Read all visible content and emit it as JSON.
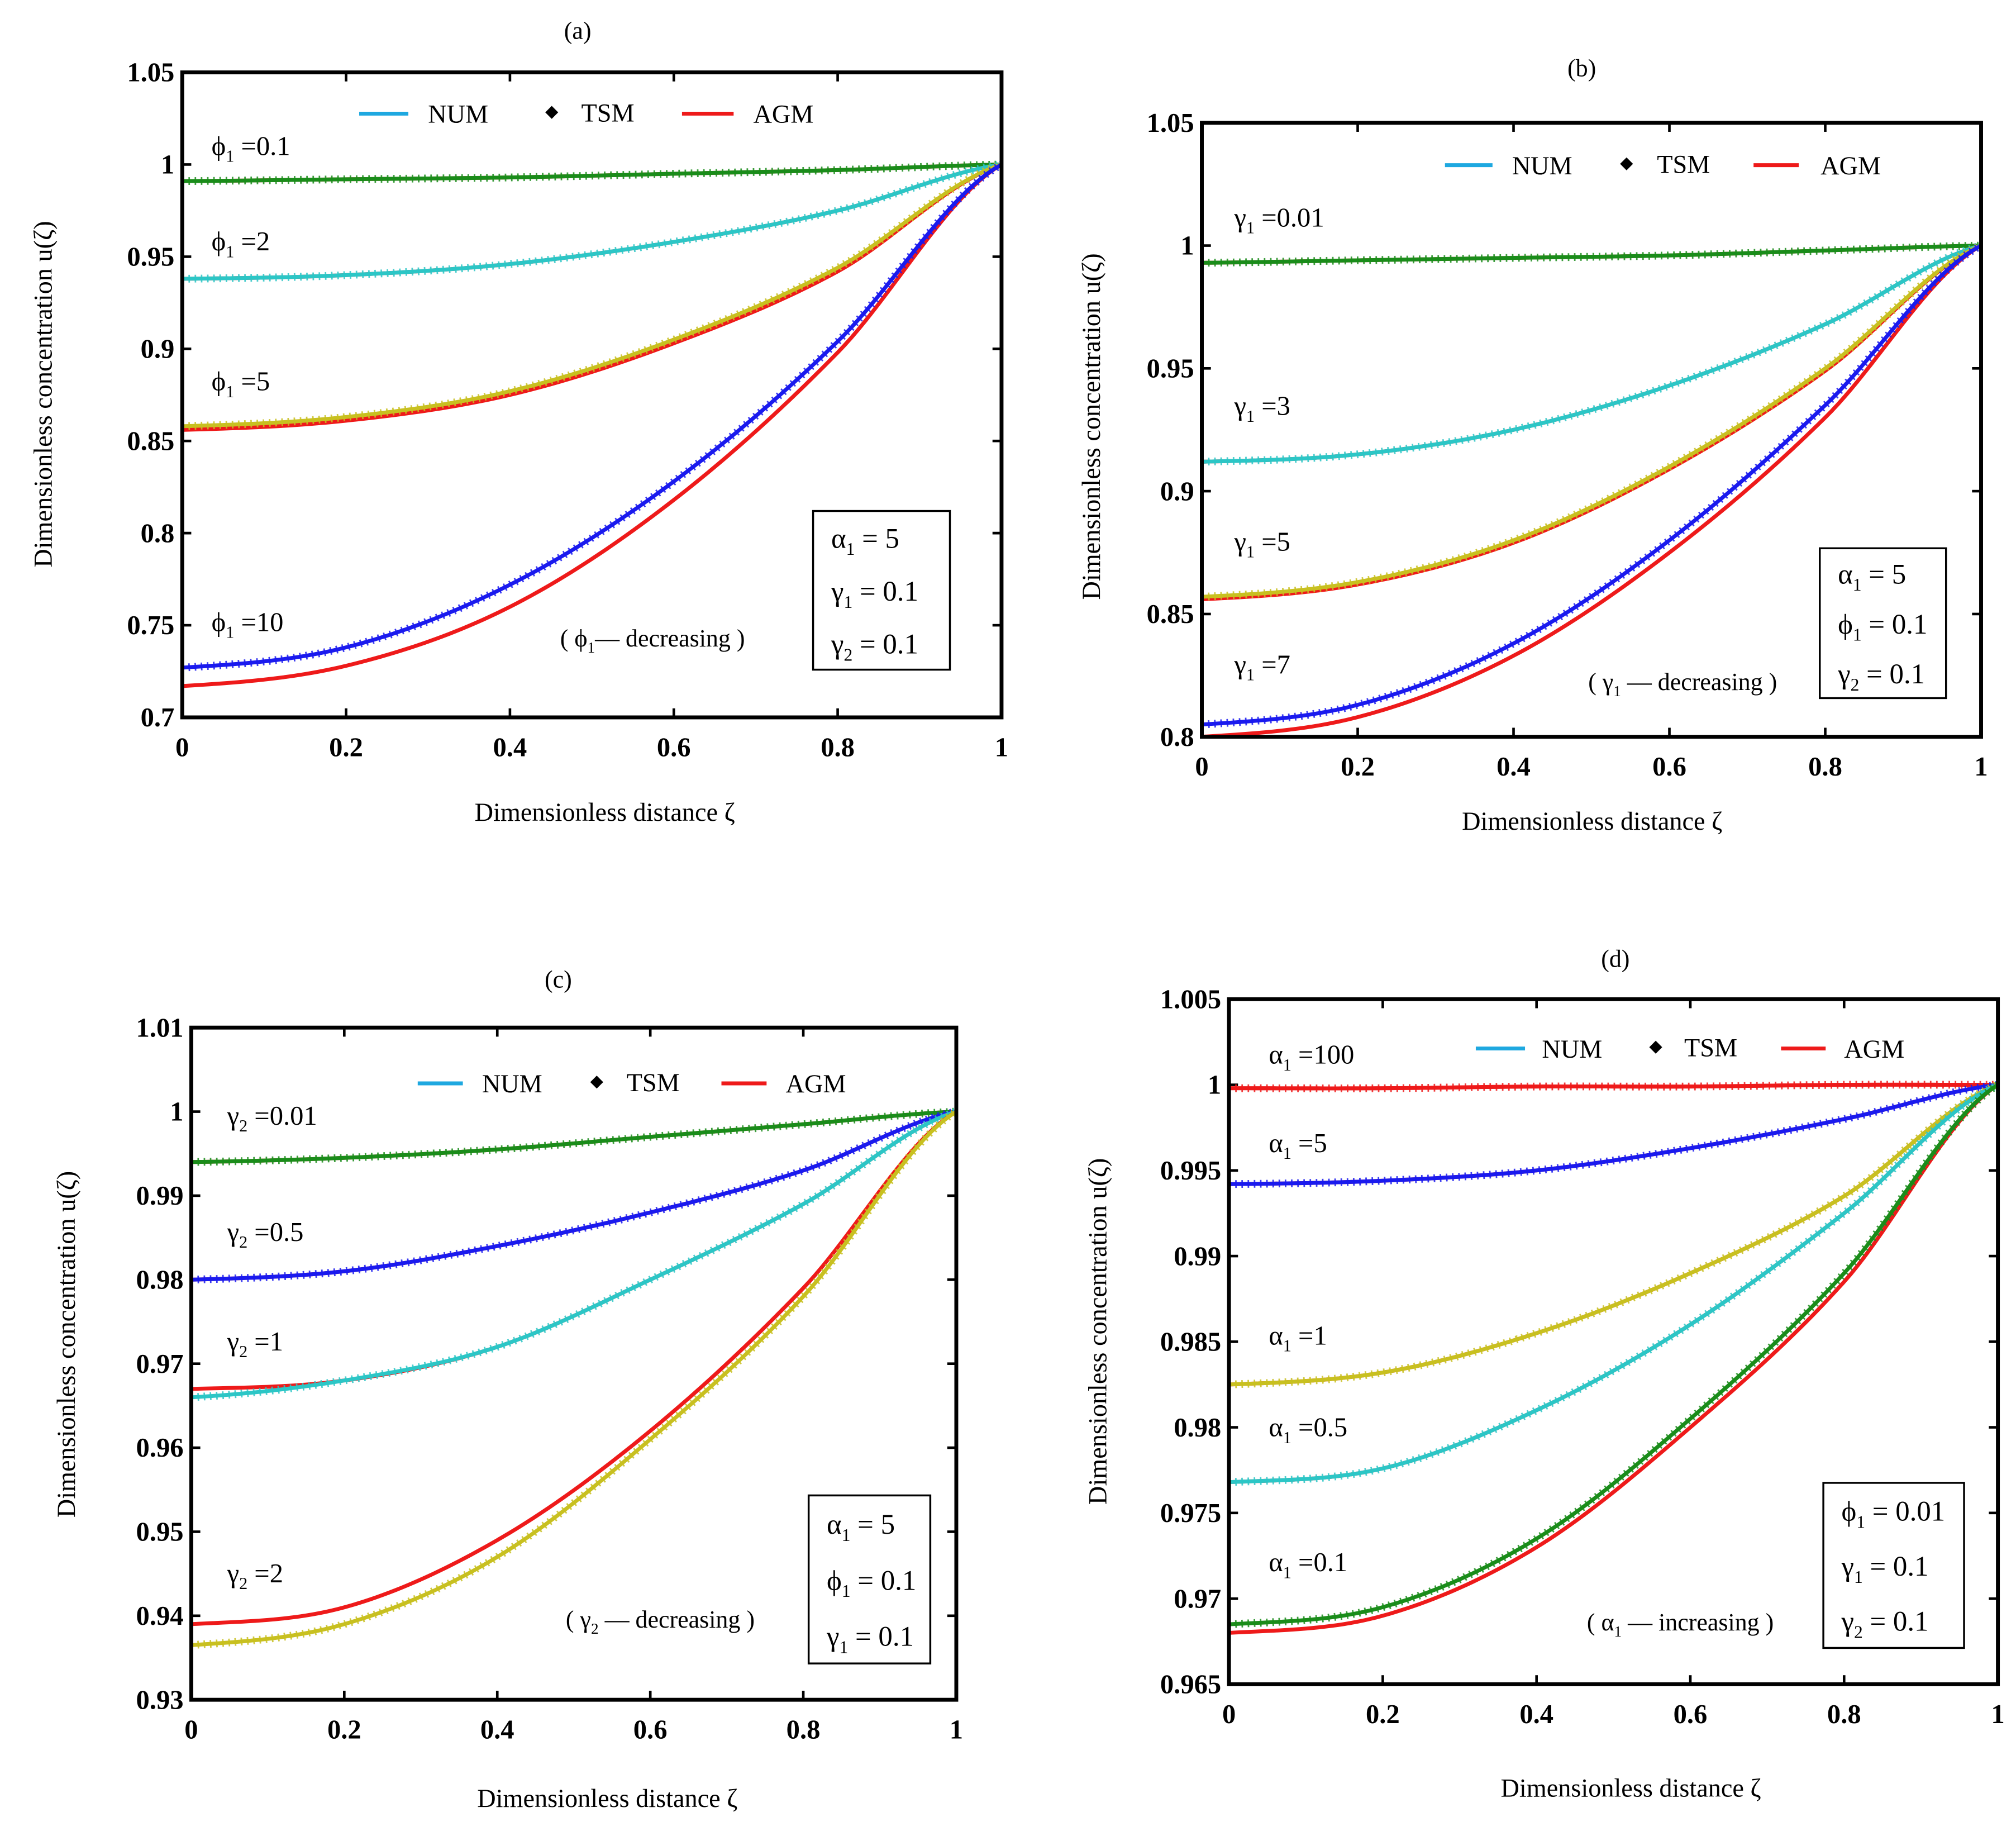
{
  "chart_data": [
    {
      "type": "line",
      "title": "(a)",
      "xlabel": "Dimensionless distance  ζ",
      "ylabel": "Dimensionless concentration  u(ζ)",
      "xlim": [
        0,
        1
      ],
      "ylim": [
        0.7,
        1.05
      ],
      "xticks": [
        "0",
        "0.2",
        "0.4",
        "0.6",
        "0.8",
        "1"
      ],
      "yticks": [
        "0.7",
        "0.75",
        "0.8",
        "0.85",
        "0.9",
        "0.95",
        "1",
        "1.05"
      ],
      "legend": {
        "placement": "top",
        "entries": [
          "NUM",
          "TSM",
          "AGM"
        ]
      },
      "params": [
        {
          "sym": "α",
          "sub": "1",
          "eq": " = 5"
        },
        {
          "sym": "γ",
          "sub": "1",
          "eq": " = 0.1"
        },
        {
          "sym": "γ",
          "sub": "2",
          "eq": " = 0.1"
        }
      ],
      "annotation": {
        "open": "( ",
        "sym": "ϕ",
        "sub": "1",
        "text": "— decreasing  )"
      },
      "x": [
        0,
        0.2,
        0.4,
        0.6,
        0.8,
        1
      ],
      "curves": [
        {
          "label": {
            "sym": "ϕ",
            "sub": "1",
            "eq": " =0.1"
          },
          "color": "#1a8c1a",
          "num": [
            0.991,
            0.992,
            0.993,
            0.995,
            0.997,
            1
          ],
          "agm": [
            0.991,
            0.992,
            0.993,
            0.995,
            0.997,
            1
          ]
        },
        {
          "label": {
            "sym": "ϕ",
            "sub": "1",
            "eq": " =2"
          },
          "color": "#2cc6c6",
          "num": [
            0.938,
            0.94,
            0.946,
            0.958,
            0.975,
            1
          ],
          "agm": [
            0.938,
            0.94,
            0.946,
            0.958,
            0.975,
            1
          ]
        },
        {
          "label": {
            "sym": "ϕ",
            "sub": "1",
            "eq": " =5"
          },
          "color": "#c8c020",
          "num": [
            0.858,
            0.863,
            0.877,
            0.905,
            0.944,
            1
          ],
          "agm": [
            0.856,
            0.861,
            0.875,
            0.903,
            0.942,
            1
          ]
        },
        {
          "label": {
            "sym": "ϕ",
            "sub": "1",
            "eq": " =10"
          },
          "color": "#1a1aee",
          "num": [
            0.727,
            0.738,
            0.772,
            0.828,
            0.904,
            1
          ],
          "agm": [
            0.717,
            0.728,
            0.76,
            0.818,
            0.898,
            1
          ]
        }
      ]
    },
    {
      "type": "line",
      "title": "(b)",
      "xlabel": "Dimensionless distance  ζ",
      "ylabel": "Dimensionless concentration  u(ζ)",
      "xlim": [
        0,
        1
      ],
      "ylim": [
        0.8,
        1.05
      ],
      "xticks": [
        "0",
        "0.2",
        "0.4",
        "0.6",
        "0.8",
        "1"
      ],
      "yticks": [
        "0.8",
        "0.85",
        "0.9",
        "0.95",
        "1",
        "1.05"
      ],
      "legend": {
        "placement": "top",
        "entries": [
          "NUM",
          "TSM",
          "AGM"
        ]
      },
      "params": [
        {
          "sym": "α",
          "sub": "1",
          "eq": " = 5"
        },
        {
          "sym": "ϕ",
          "sub": "1",
          "eq": " = 0.1"
        },
        {
          "sym": "γ",
          "sub": "2",
          "eq": " = 0.1"
        }
      ],
      "annotation": {
        "open": "( ",
        "sym": "γ",
        "sub": "1",
        "text": " — decreasing  )"
      },
      "x": [
        0,
        0.2,
        0.4,
        0.6,
        0.8,
        1
      ],
      "curves": [
        {
          "label": {
            "sym": "γ",
            "sub": "1",
            "eq": " =0.01"
          },
          "color": "#1a8c1a",
          "num": [
            0.993,
            0.994,
            0.995,
            0.996,
            0.998,
            1
          ],
          "agm": [
            0.993,
            0.994,
            0.995,
            0.996,
            0.998,
            1
          ]
        },
        {
          "label": {
            "sym": "γ",
            "sub": "1",
            "eq": " =3"
          },
          "color": "#2cc6c6",
          "num": [
            0.912,
            0.915,
            0.925,
            0.943,
            0.968,
            1
          ],
          "agm": [
            0.912,
            0.915,
            0.925,
            0.943,
            0.968,
            1
          ]
        },
        {
          "label": {
            "sym": "γ",
            "sub": "1",
            "eq": " =5"
          },
          "color": "#c8c020",
          "num": [
            0.857,
            0.863,
            0.88,
            0.91,
            0.95,
            1
          ],
          "agm": [
            0.856,
            0.862,
            0.879,
            0.909,
            0.949,
            1
          ]
        },
        {
          "label": {
            "sym": "γ",
            "sub": "1",
            "eq": " =7"
          },
          "color": "#1a1aee",
          "num": [
            0.805,
            0.813,
            0.838,
            0.88,
            0.935,
            1
          ],
          "agm": [
            0.8,
            0.808,
            0.833,
            0.875,
            0.93,
            1
          ]
        }
      ]
    },
    {
      "type": "line",
      "title": "(c)",
      "xlabel": "Dimensionless distance  ζ",
      "ylabel": "Dimensionless concentration  u(ζ)",
      "xlim": [
        0,
        1
      ],
      "ylim": [
        0.93,
        1.01
      ],
      "xticks": [
        "0",
        "0.2",
        "0.4",
        "0.6",
        "0.8",
        "1"
      ],
      "yticks": [
        "0.93",
        "0.94",
        "0.95",
        "0.96",
        "0.97",
        "0.98",
        "0.99",
        "1",
        "1.01"
      ],
      "legend": {
        "placement": "top",
        "entries": [
          "NUM",
          "TSM",
          "AGM"
        ]
      },
      "params": [
        {
          "sym": "α",
          "sub": "1",
          "eq": " = 5"
        },
        {
          "sym": "ϕ",
          "sub": "1",
          "eq": " = 0.1"
        },
        {
          "sym": "γ",
          "sub": "1",
          "eq": " = 0.1"
        }
      ],
      "annotation": {
        "open": "( ",
        "sym": "γ",
        "sub": "2",
        "text": " — decreasing  )"
      },
      "x": [
        0,
        0.2,
        0.4,
        0.6,
        0.8,
        1
      ],
      "curves": [
        {
          "label": {
            "sym": "γ",
            "sub": "2",
            "eq": " =0.01"
          },
          "color": "#1a8c1a",
          "num": [
            0.994,
            0.9945,
            0.9955,
            0.997,
            0.9985,
            1
          ],
          "agm": [
            0.994,
            0.9945,
            0.9955,
            0.997,
            0.9985,
            1
          ]
        },
        {
          "label": {
            "sym": "γ",
            "sub": "2",
            "eq": " =0.5"
          },
          "color": "#1a1aee",
          "num": [
            0.98,
            0.981,
            0.984,
            0.988,
            0.993,
            1
          ],
          "agm": [
            0.98,
            0.981,
            0.984,
            0.988,
            0.993,
            1
          ]
        },
        {
          "label": {
            "sym": "γ",
            "sub": "2",
            "eq": " =1"
          },
          "color": "#2cc6c6",
          "num": [
            0.966,
            0.968,
            0.972,
            0.98,
            0.989,
            1
          ],
          "agm": [
            0.967,
            0.968,
            0.972,
            0.98,
            0.989,
            1
          ]
        },
        {
          "label": {
            "sym": "γ",
            "sub": "2",
            "eq": " =2"
          },
          "color": "#c8c020",
          "num": [
            0.9365,
            0.939,
            0.947,
            0.961,
            0.978,
            1
          ],
          "agm": [
            0.939,
            0.941,
            0.949,
            0.962,
            0.979,
            1
          ]
        }
      ]
    },
    {
      "type": "line",
      "title": "(d)",
      "xlabel": "Dimensionless distance  ζ",
      "ylabel": "Dimensionless concentration  u(ζ)",
      "xlim": [
        0,
        1
      ],
      "ylim": [
        0.965,
        1.005
      ],
      "xticks": [
        "0",
        "0.2",
        "0.4",
        "0.6",
        "0.8",
        "1"
      ],
      "yticks": [
        "0.965",
        "0.97",
        "0.975",
        "0.98",
        "0.985",
        "0.99",
        "0.995",
        "1",
        "1.005"
      ],
      "legend": {
        "placement": "top",
        "entries": [
          "NUM",
          "TSM",
          "AGM"
        ]
      },
      "params": [
        {
          "sym": "ϕ",
          "sub": "1",
          "eq": " = 0.01"
        },
        {
          "sym": "γ",
          "sub": "1",
          "eq": " = 0.1"
        },
        {
          "sym": "γ",
          "sub": "2",
          "eq": " = 0.1"
        }
      ],
      "annotation": {
        "open": "( ",
        "sym": "α",
        "sub": "1",
        "text": " — increasing  )"
      },
      "x": [
        0,
        0.2,
        0.4,
        0.6,
        0.8,
        1
      ],
      "curves": [
        {
          "label": {
            "sym": "α",
            "sub": "1",
            "eq": " =100"
          },
          "color": "#ee1a1a",
          "num": [
            0.9998,
            0.9998,
            0.9999,
            0.9999,
            1,
            1
          ],
          "agm": [
            0.9998,
            0.9998,
            0.9999,
            0.9999,
            1,
            1
          ]
        },
        {
          "label": {
            "sym": "α",
            "sub": "1",
            "eq": " =5"
          },
          "color": "#1a1aee",
          "num": [
            0.9942,
            0.9944,
            0.995,
            0.9963,
            0.998,
            1
          ],
          "agm": [
            0.9942,
            0.9944,
            0.995,
            0.9963,
            0.998,
            1
          ]
        },
        {
          "label": {
            "sym": "α",
            "sub": "1",
            "eq": " =1"
          },
          "color": "#c8c020",
          "num": [
            0.9825,
            0.9832,
            0.9855,
            0.989,
            0.9935,
            1
          ],
          "agm": [
            0.9825,
            0.9832,
            0.9855,
            0.989,
            0.9935,
            1
          ]
        },
        {
          "label": {
            "sym": "α",
            "sub": "1",
            "eq": " =0.5"
          },
          "color": "#2cc6c6",
          "num": [
            0.9768,
            0.9776,
            0.981,
            0.986,
            0.9925,
            1
          ],
          "agm": [
            0.9768,
            0.9776,
            0.981,
            0.986,
            0.9925,
            1
          ]
        },
        {
          "label": {
            "sym": "α",
            "sub": "1",
            "eq": " =0.1"
          },
          "color": "#1a8c1a",
          "num": [
            0.9685,
            0.9695,
            0.9735,
            0.9805,
            0.989,
            1
          ],
          "agm": [
            0.968,
            0.969,
            0.973,
            0.98,
            0.9885,
            1
          ]
        }
      ]
    }
  ],
  "colors": {
    "NUM": "#1ea8e0",
    "TSM": "#000000",
    "AGM": "#ee1a1a"
  }
}
